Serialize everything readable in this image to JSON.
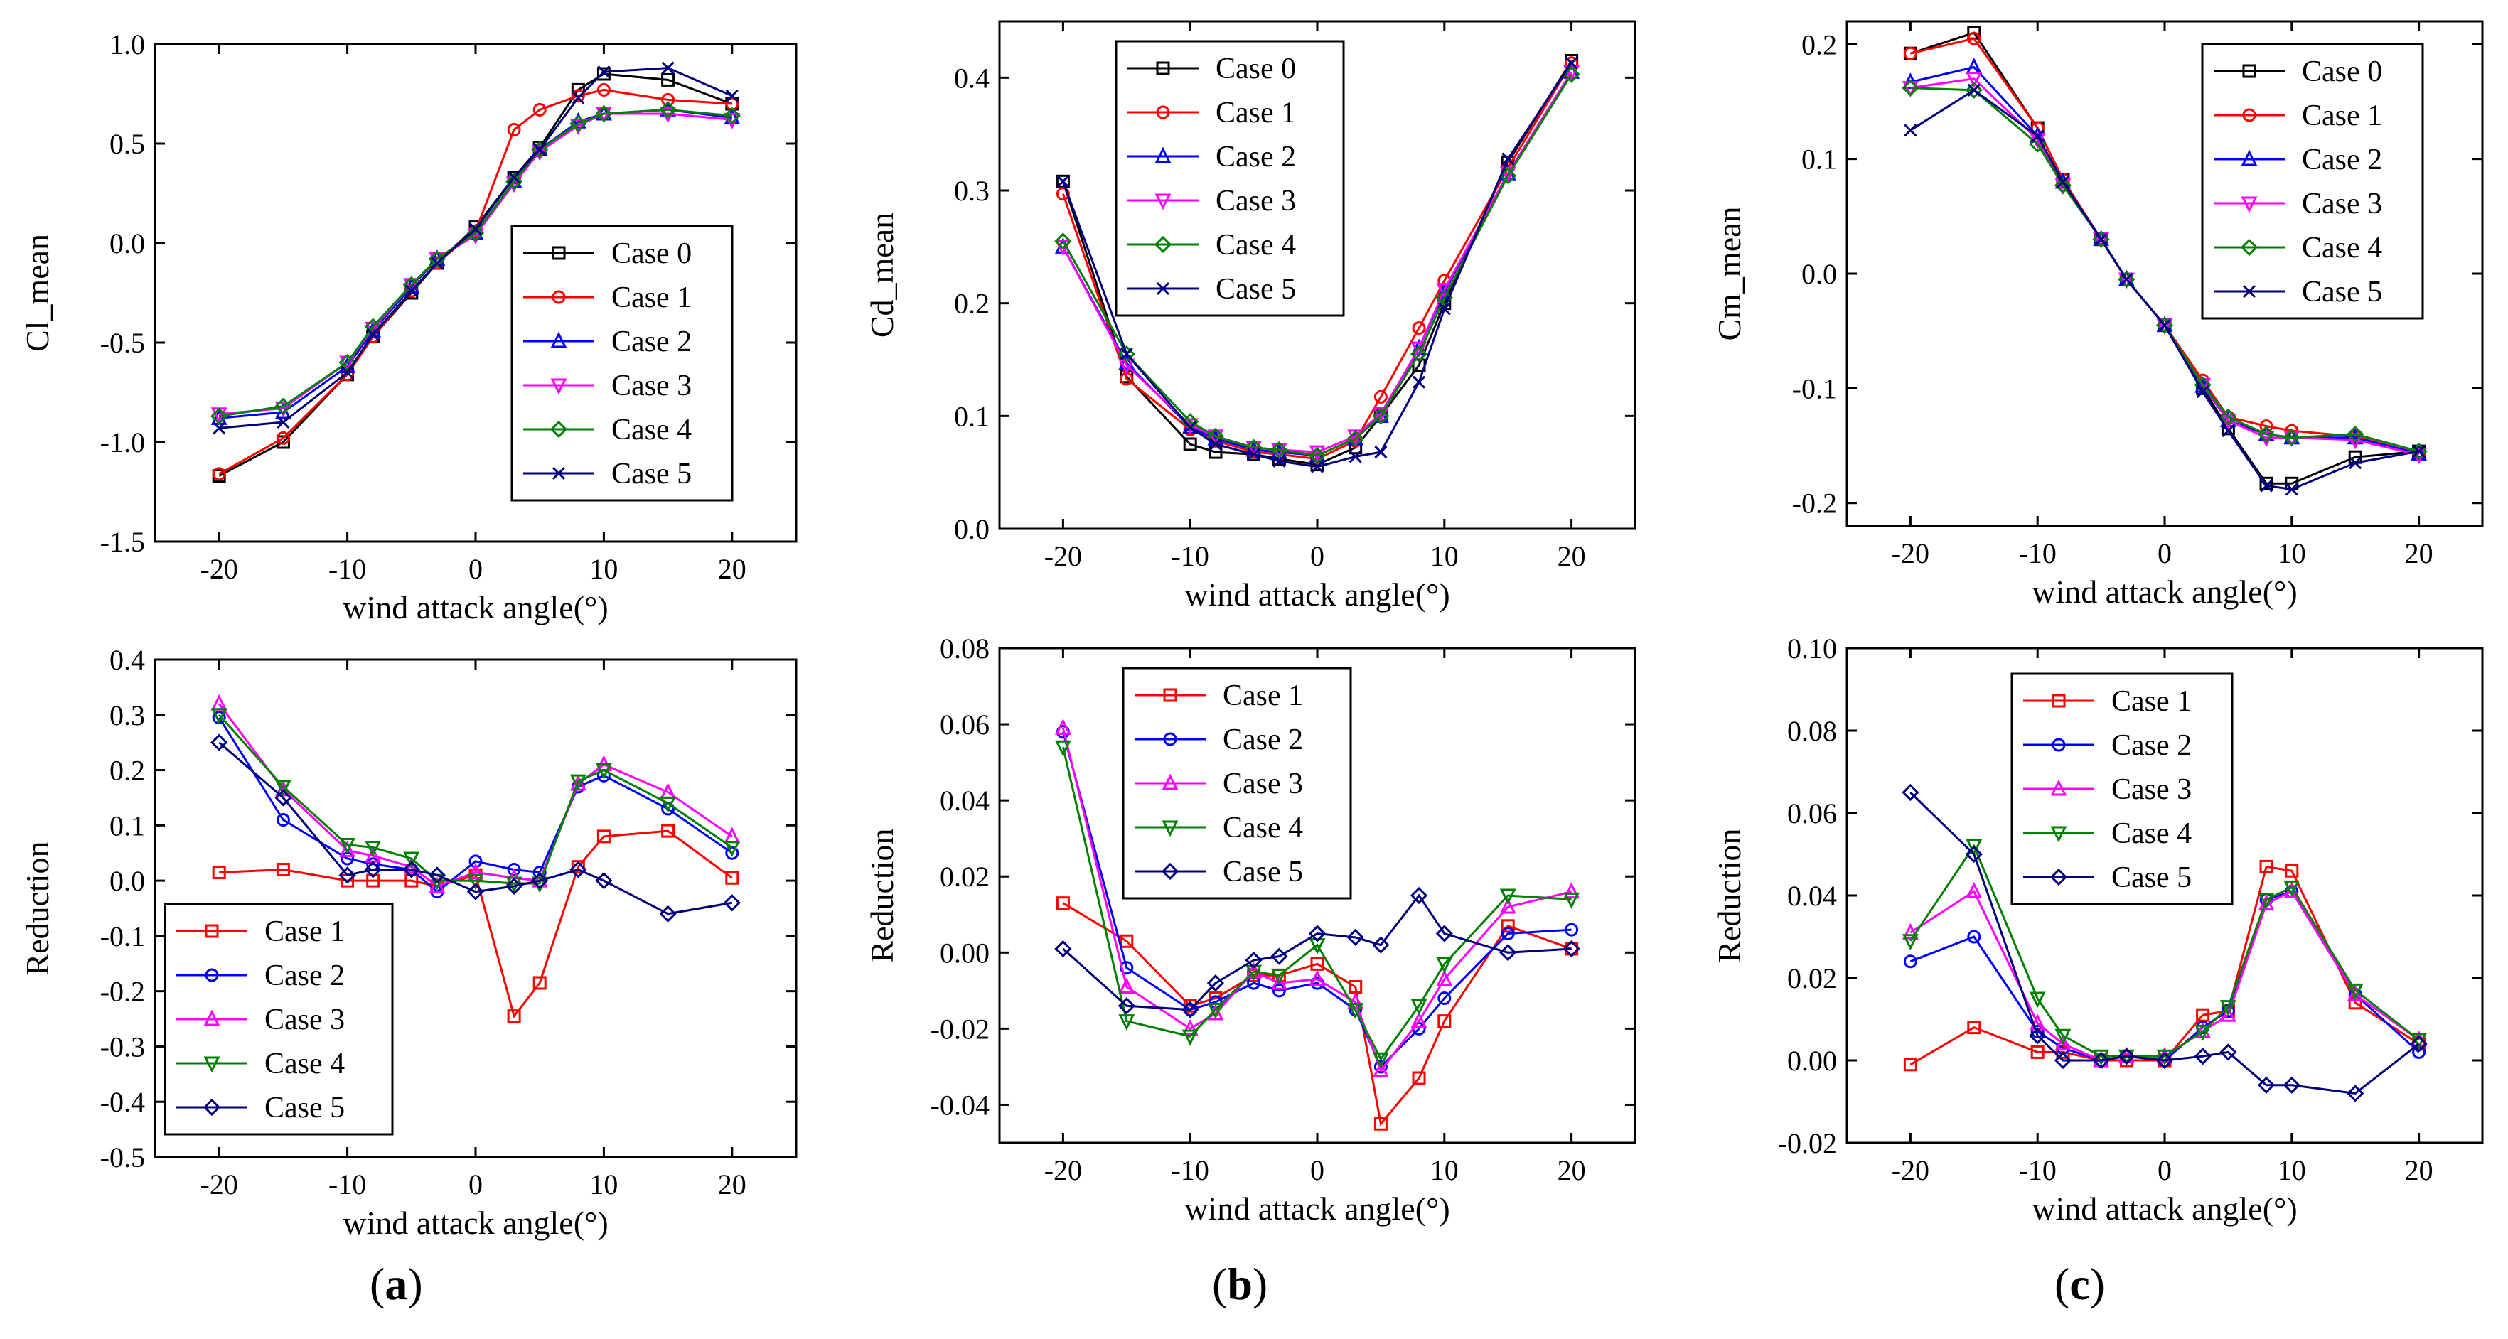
{
  "figure": {
    "panel_labels": [
      {
        "open": "(",
        "letter": "a",
        "close": ")"
      },
      {
        "open": "(",
        "letter": "b",
        "close": ")"
      },
      {
        "open": "(",
        "letter": "c",
        "close": ")"
      }
    ]
  },
  "colors": {
    "Case 0": "#000000",
    "Case 1": "#ff0000",
    "Case 2": "#0000ff",
    "Case 3": "#ff00ff",
    "Case 4": "#008000",
    "Case 5": "#00007f",
    "R1": "#000000",
    "R2": "#ff0000",
    "R3": "#0000ff",
    "R4": "#ff00ff",
    "R5": "#008000"
  },
  "chart_data": [
    {
      "type": "line",
      "id": "a-top",
      "xlabel": "wind attack angle(°)",
      "ylabel": "Cl_mean",
      "xlim": [
        -25,
        25
      ],
      "ylim": [
        -1.5,
        1.0
      ],
      "xticks": [
        -20,
        -10,
        0,
        10,
        20
      ],
      "xtick_labels": [
        "-20",
        "-10",
        "0",
        "10",
        "20"
      ],
      "yticks": [
        -1.5,
        -1.0,
        -0.5,
        0.0,
        0.5,
        1.0
      ],
      "ytick_labels": [
        "-1.5",
        "-1.0",
        "-0.5",
        "0.0",
        "0.5",
        "1.0"
      ],
      "legend_position": "lower-right",
      "x": [
        -20,
        -15,
        -10,
        -8,
        -5,
        -3,
        0,
        3,
        5,
        8,
        10,
        15,
        20
      ],
      "series": [
        {
          "name": "Case 0",
          "marker": "square",
          "values": [
            -1.17,
            -1.0,
            -0.66,
            -0.47,
            -0.25,
            -0.1,
            0.08,
            0.33,
            0.48,
            0.77,
            0.85,
            0.82,
            0.7
          ]
        },
        {
          "name": "Case 1",
          "marker": "circle",
          "values": [
            -1.16,
            -0.98,
            -0.66,
            -0.47,
            -0.24,
            -0.1,
            0.06,
            0.57,
            0.67,
            0.74,
            0.77,
            0.72,
            0.7
          ]
        },
        {
          "name": "Case 2",
          "marker": "triangle",
          "values": [
            -0.88,
            -0.85,
            -0.62,
            -0.44,
            -0.22,
            -0.08,
            0.05,
            0.31,
            0.47,
            0.61,
            0.65,
            0.67,
            0.63
          ]
        },
        {
          "name": "Case 3",
          "marker": "triangle-down",
          "values": [
            -0.86,
            -0.83,
            -0.6,
            -0.43,
            -0.21,
            -0.08,
            0.04,
            0.3,
            0.46,
            0.59,
            0.65,
            0.65,
            0.62
          ]
        },
        {
          "name": "Case 4",
          "marker": "diamond",
          "values": [
            -0.87,
            -0.82,
            -0.6,
            -0.42,
            -0.21,
            -0.08,
            0.05,
            0.31,
            0.47,
            0.6,
            0.65,
            0.67,
            0.64
          ]
        },
        {
          "name": "Case 5",
          "marker": "x",
          "values": [
            -0.93,
            -0.9,
            -0.65,
            -0.46,
            -0.24,
            -0.1,
            0.07,
            0.33,
            0.47,
            0.73,
            0.86,
            0.88,
            0.74
          ]
        }
      ]
    },
    {
      "type": "line",
      "id": "b-top",
      "xlabel": "wind attack angle(°)",
      "ylabel": "Cd_mean",
      "xlim": [
        -25,
        25
      ],
      "ylim": [
        0.0,
        0.45
      ],
      "xticks": [
        -20,
        -10,
        0,
        10,
        20
      ],
      "xtick_labels": [
        "-20",
        "-10",
        "0",
        "10",
        "20"
      ],
      "yticks": [
        0.0,
        0.1,
        0.2,
        0.3,
        0.4
      ],
      "ytick_labels": [
        "0.0",
        "0.1",
        "0.2",
        "0.3",
        "0.4"
      ],
      "legend_position": "top-left",
      "x": [
        -20,
        -15,
        -10,
        -8,
        -5,
        -3,
        0,
        3,
        5,
        8,
        10,
        15,
        20
      ],
      "series": [
        {
          "name": "Case 0",
          "marker": "square",
          "values": [
            0.308,
            0.135,
            0.075,
            0.068,
            0.066,
            0.062,
            0.057,
            0.072,
            0.1,
            0.145,
            0.2,
            0.325,
            0.415
          ]
        },
        {
          "name": "Case 1",
          "marker": "circle",
          "values": [
            0.297,
            0.133,
            0.088,
            0.078,
            0.068,
            0.066,
            0.062,
            0.078,
            0.117,
            0.178,
            0.22,
            0.32,
            0.413
          ]
        },
        {
          "name": "Case 2",
          "marker": "triangle",
          "values": [
            0.25,
            0.147,
            0.09,
            0.08,
            0.07,
            0.068,
            0.065,
            0.08,
            0.1,
            0.16,
            0.21,
            0.315,
            0.405
          ]
        },
        {
          "name": "Case 3",
          "marker": "triangle-down",
          "values": [
            0.25,
            0.145,
            0.092,
            0.082,
            0.072,
            0.07,
            0.068,
            0.082,
            0.102,
            0.16,
            0.212,
            0.315,
            0.405
          ]
        },
        {
          "name": "Case 4",
          "marker": "diamond",
          "values": [
            0.255,
            0.155,
            0.095,
            0.082,
            0.072,
            0.07,
            0.065,
            0.08,
            0.1,
            0.155,
            0.205,
            0.313,
            0.403
          ]
        },
        {
          "name": "Case 5",
          "marker": "x",
          "values": [
            0.308,
            0.155,
            0.09,
            0.075,
            0.066,
            0.06,
            0.055,
            0.064,
            0.068,
            0.13,
            0.195,
            0.328,
            0.413
          ]
        }
      ]
    },
    {
      "type": "line",
      "id": "c-top",
      "xlabel": "wind attack angle(°)",
      "ylabel": "Cm_mean",
      "xlim": [
        -25,
        25
      ],
      "ylim": [
        -0.22,
        0.22
      ],
      "xticks": [
        -20,
        -10,
        0,
        10,
        20
      ],
      "xtick_labels": [
        "-20",
        "-10",
        "0",
        "10",
        "20"
      ],
      "yticks": [
        -0.2,
        -0.1,
        0.0,
        0.1,
        0.2
      ],
      "ytick_labels": [
        "-0.2",
        "-0.1",
        "0.0",
        "0.1",
        "0.2"
      ],
      "legend_position": "top-right",
      "x": [
        -20,
        -15,
        -10,
        -8,
        -5,
        -3,
        0,
        3,
        5,
        8,
        10,
        15,
        20
      ],
      "series": [
        {
          "name": "Case 0",
          "marker": "square",
          "values": [
            0.192,
            0.21,
            0.127,
            0.082,
            0.03,
            -0.005,
            -0.045,
            -0.1,
            -0.135,
            -0.183,
            -0.183,
            -0.16,
            -0.155
          ]
        },
        {
          "name": "Case 1",
          "marker": "circle",
          "values": [
            0.192,
            0.205,
            0.127,
            0.082,
            0.03,
            -0.005,
            -0.045,
            -0.093,
            -0.125,
            -0.133,
            -0.137,
            -0.142,
            -0.157
          ]
        },
        {
          "name": "Case 2",
          "marker": "triangle",
          "values": [
            0.167,
            0.18,
            0.12,
            0.08,
            0.03,
            -0.005,
            -0.045,
            -0.098,
            -0.128,
            -0.14,
            -0.143,
            -0.143,
            -0.157
          ]
        },
        {
          "name": "Case 3",
          "marker": "triangle-down",
          "values": [
            0.162,
            0.17,
            0.117,
            0.077,
            0.03,
            -0.005,
            -0.045,
            -0.097,
            -0.128,
            -0.143,
            -0.143,
            -0.145,
            -0.158
          ]
        },
        {
          "name": "Case 4",
          "marker": "diamond",
          "values": [
            0.162,
            0.16,
            0.113,
            0.077,
            0.03,
            -0.005,
            -0.045,
            -0.097,
            -0.125,
            -0.14,
            -0.143,
            -0.14,
            -0.155
          ]
        },
        {
          "name": "Case 5",
          "marker": "x",
          "values": [
            0.125,
            0.16,
            0.12,
            0.08,
            0.03,
            -0.005,
            -0.045,
            -0.103,
            -0.137,
            -0.185,
            -0.188,
            -0.165,
            -0.155
          ]
        }
      ]
    },
    {
      "type": "line",
      "id": "a-bottom",
      "xlabel": "wind attack angle(°)",
      "ylabel": "Reduction",
      "xlim": [
        -25,
        25
      ],
      "ylim": [
        -0.5,
        0.4
      ],
      "xticks": [
        -20,
        -10,
        0,
        10,
        20
      ],
      "xtick_labels": [
        "-20",
        "-10",
        "0",
        "10",
        "20"
      ],
      "yticks": [
        -0.5,
        -0.4,
        -0.3,
        -0.2,
        -0.1,
        0.0,
        0.1,
        0.2,
        0.3,
        0.4
      ],
      "ytick_labels": [
        "-0.5",
        "-0.4",
        "-0.3",
        "-0.2",
        "-0.1",
        "0.0",
        "0.1",
        "0.2",
        "0.3",
        "0.4"
      ],
      "legend_position": "lower-left",
      "x": [
        -20,
        -15,
        -10,
        -8,
        -5,
        -3,
        0,
        3,
        5,
        8,
        10,
        15,
        20
      ],
      "series": [
        {
          "name": "Case 1",
          "marker": "square",
          "values": [
            0.015,
            0.02,
            0.0,
            0.0,
            0.0,
            -0.01,
            0.01,
            -0.245,
            -0.185,
            0.025,
            0.08,
            0.09,
            0.005
          ]
        },
        {
          "name": "Case 2",
          "marker": "circle",
          "values": [
            0.295,
            0.11,
            0.04,
            0.03,
            0.02,
            -0.02,
            0.035,
            0.02,
            0.015,
            0.17,
            0.19,
            0.13,
            0.05
          ]
        },
        {
          "name": "Case 3",
          "marker": "triangle",
          "values": [
            0.32,
            0.165,
            0.055,
            0.045,
            0.025,
            -0.01,
            0.015,
            0.005,
            0.0,
            0.175,
            0.21,
            0.16,
            0.08
          ]
        },
        {
          "name": "Case 4",
          "marker": "triangle-down",
          "values": [
            0.3,
            0.17,
            0.065,
            0.06,
            0.04,
            0.0,
            0.0,
            -0.005,
            -0.005,
            0.18,
            0.2,
            0.14,
            0.06
          ]
        },
        {
          "name": "Case 5",
          "marker": "diamond",
          "values": [
            0.25,
            0.15,
            0.01,
            0.02,
            0.02,
            0.01,
            -0.02,
            -0.01,
            0.0,
            0.02,
            0.0,
            -0.06,
            -0.04
          ]
        }
      ]
    },
    {
      "type": "line",
      "id": "b-bottom",
      "xlabel": "wind attack angle(°)",
      "ylabel": "Reduction",
      "xlim": [
        -25,
        25
      ],
      "ylim": [
        -0.05,
        0.08
      ],
      "xticks": [
        -20,
        -10,
        0,
        10,
        20
      ],
      "xtick_labels": [
        "-20",
        "-10",
        "0",
        "10",
        "20"
      ],
      "yticks": [
        -0.04,
        -0.02,
        0.0,
        0.02,
        0.04,
        0.06,
        0.08
      ],
      "ytick_labels": [
        "-0.04",
        "-0.02",
        "0.00",
        "0.02",
        "0.04",
        "0.06",
        "0.08"
      ],
      "legend_position": "top-center",
      "x": [
        -20,
        -15,
        -10,
        -8,
        -5,
        -3,
        0,
        3,
        5,
        8,
        10,
        15,
        20
      ],
      "series": [
        {
          "name": "Case 1",
          "marker": "square",
          "values": [
            0.013,
            0.003,
            -0.014,
            -0.012,
            -0.006,
            -0.006,
            -0.003,
            -0.009,
            -0.045,
            -0.033,
            -0.018,
            0.007,
            0.001
          ]
        },
        {
          "name": "Case 2",
          "marker": "circle",
          "values": [
            0.058,
            -0.004,
            -0.015,
            -0.013,
            -0.008,
            -0.01,
            -0.008,
            -0.015,
            -0.03,
            -0.02,
            -0.012,
            0.005,
            0.006
          ]
        },
        {
          "name": "Case 3",
          "marker": "triangle",
          "values": [
            0.059,
            -0.009,
            -0.02,
            -0.016,
            -0.005,
            -0.008,
            -0.007,
            -0.013,
            -0.031,
            -0.018,
            -0.007,
            0.012,
            0.016
          ]
        },
        {
          "name": "Case 4",
          "marker": "triangle-down",
          "values": [
            0.054,
            -0.018,
            -0.022,
            -0.015,
            -0.005,
            -0.006,
            0.002,
            -0.015,
            -0.028,
            -0.014,
            -0.003,
            0.015,
            0.014
          ]
        },
        {
          "name": "Case 5",
          "marker": "diamond",
          "values": [
            0.001,
            -0.014,
            -0.015,
            -0.008,
            -0.002,
            -0.001,
            0.005,
            0.004,
            0.002,
            0.015,
            0.005,
            0.0,
            0.001
          ]
        }
      ]
    },
    {
      "type": "line",
      "id": "c-bottom",
      "xlabel": "wind attack angle(°)",
      "ylabel": "Reduction",
      "xlim": [
        -25,
        25
      ],
      "ylim": [
        -0.02,
        0.1
      ],
      "xticks": [
        -20,
        -10,
        0,
        10,
        20
      ],
      "xtick_labels": [
        "-20",
        "-10",
        "0",
        "10",
        "20"
      ],
      "yticks": [
        -0.02,
        0.0,
        0.02,
        0.04,
        0.06,
        0.08,
        0.1
      ],
      "ytick_labels": [
        "-0.02",
        "0.00",
        "0.02",
        "0.04",
        "0.06",
        "0.08",
        "0.10"
      ],
      "legend_position": "top-left",
      "x": [
        -20,
        -15,
        -10,
        -8,
        -5,
        -3,
        0,
        3,
        5,
        8,
        10,
        15,
        20
      ],
      "series": [
        {
          "name": "Case 1",
          "marker": "square",
          "values": [
            -0.001,
            0.008,
            0.002,
            0.002,
            0.0,
            0.0,
            0.0,
            0.011,
            0.012,
            0.047,
            0.046,
            0.014,
            0.004
          ]
        },
        {
          "name": "Case 2",
          "marker": "circle",
          "values": [
            0.024,
            0.03,
            0.007,
            0.003,
            0.0,
            0.001,
            0.0,
            0.008,
            0.012,
            0.039,
            0.041,
            0.016,
            0.002
          ]
        },
        {
          "name": "Case 3",
          "marker": "triangle",
          "values": [
            0.031,
            0.041,
            0.009,
            0.004,
            0.0,
            0.001,
            0.001,
            0.007,
            0.011,
            0.038,
            0.041,
            0.016,
            0.005
          ]
        },
        {
          "name": "Case 4",
          "marker": "triangle-down",
          "values": [
            0.029,
            0.052,
            0.015,
            0.006,
            0.001,
            0.001,
            0.001,
            0.007,
            0.013,
            0.039,
            0.042,
            0.017,
            0.005
          ]
        },
        {
          "name": "Case 5",
          "marker": "diamond",
          "values": [
            0.065,
            0.05,
            0.006,
            0.0,
            0.0,
            0.001,
            0.0,
            0.001,
            0.002,
            -0.006,
            -0.006,
            -0.008,
            0.004
          ]
        }
      ]
    }
  ]
}
